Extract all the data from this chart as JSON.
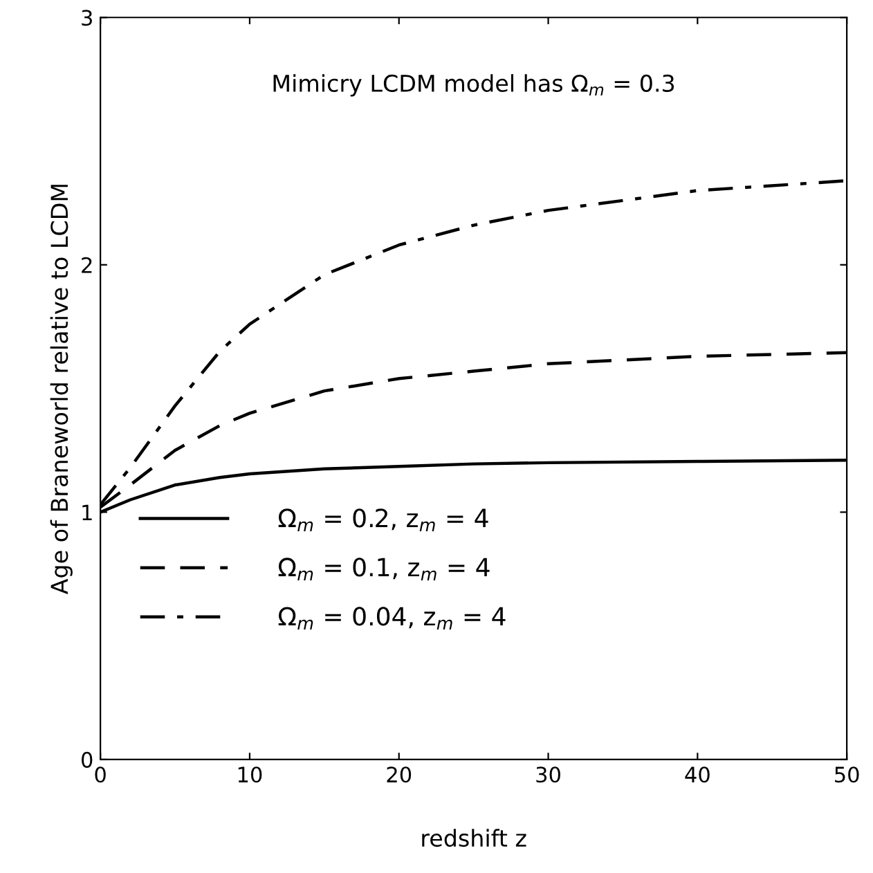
{
  "chart_data": {
    "type": "line",
    "xlabel": "redshift z",
    "ylabel": "Age of Braneworld relative to LCDM",
    "annotations": [
      "Mimicry LCDM model has Ω$_{m}$ = 0.3"
    ],
    "xlim": [
      0,
      50
    ],
    "ylim": [
      0,
      3
    ],
    "xticks": [
      0,
      10,
      20,
      30,
      40,
      50
    ],
    "yticks": [
      0,
      1,
      2,
      3
    ],
    "grid": false,
    "legend": "bottom left",
    "marker": "none",
    "series": [
      {
        "name": "Ω$_{m}$ = 0.2, z$_{m}$ = 4",
        "color": "#000000",
        "line_style": "solid",
        "x": [
          0,
          2,
          5,
          8,
          10,
          15,
          20,
          25,
          30,
          40,
          50
        ],
        "values": [
          1.0,
          1.05,
          1.11,
          1.14,
          1.155,
          1.175,
          1.185,
          1.195,
          1.2,
          1.205,
          1.21
        ]
      },
      {
        "name": "Ω$_{m}$ = 0.1, z$_{m}$ = 4",
        "color": "#000000",
        "line_style": "dashed",
        "x": [
          0,
          2,
          5,
          8,
          10,
          15,
          20,
          25,
          30,
          40,
          50
        ],
        "values": [
          1.02,
          1.11,
          1.25,
          1.35,
          1.4,
          1.49,
          1.54,
          1.57,
          1.6,
          1.63,
          1.645
        ]
      },
      {
        "name": "Ω$_{m}$ = 0.04, z$_{m}$ = 4",
        "color": "#000000",
        "line_style": "dashdot",
        "x": [
          0,
          2,
          5,
          8,
          10,
          15,
          20,
          25,
          30,
          40,
          50
        ],
        "values": [
          1.03,
          1.18,
          1.43,
          1.65,
          1.76,
          1.96,
          2.08,
          2.16,
          2.22,
          2.3,
          2.34
        ]
      }
    ]
  }
}
